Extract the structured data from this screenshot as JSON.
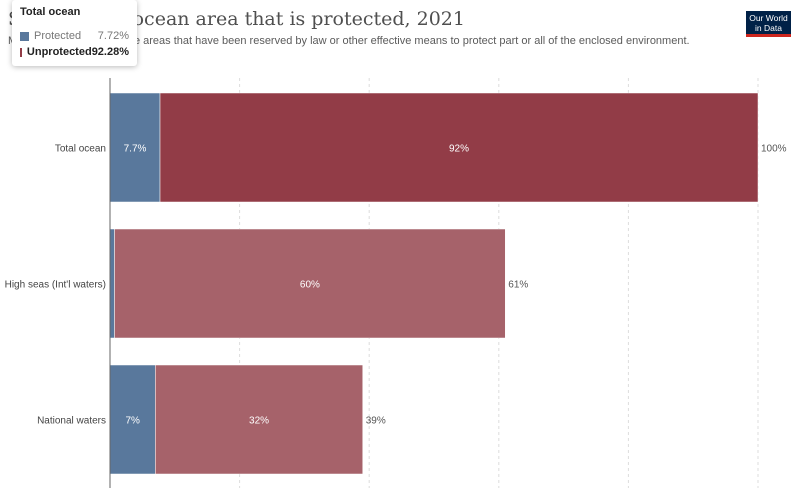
{
  "header": {
    "title": "Share of the ocean area that is protected, 2021",
    "subtitle": "Marine protected areas are areas that have been reserved by law or other effective means to protect part or all of the enclosed environment.",
    "logo_line1": "Our World",
    "logo_line2": "in Data"
  },
  "tooltip": {
    "title": "Total ocean",
    "rows": [
      {
        "label": "Protected",
        "value": "7.72%"
      },
      {
        "label": "Unprotected",
        "value": "92.28%"
      }
    ]
  },
  "colors": {
    "protected": "#59789c",
    "unprotected_highlight": "#923c47",
    "unprotected": "#a6626a",
    "grid": "#dddddd",
    "axis": "#666666"
  },
  "chart_data": {
    "type": "bar",
    "orientation": "horizontal",
    "stacked": true,
    "categories": [
      "Total ocean",
      "High seas (Int'l waters)",
      "National waters"
    ],
    "xlim": [
      0,
      100
    ],
    "grid": true,
    "series": [
      {
        "name": "Protected",
        "values": [
          7.72,
          0.7,
          7
        ],
        "labels": [
          "7.7%",
          "",
          "7%"
        ]
      },
      {
        "name": "Unprotected",
        "values": [
          92.28,
          60.3,
          32
        ],
        "labels": [
          "92%",
          "60%",
          "32%"
        ]
      }
    ],
    "totals": [
      "100%",
      "61%",
      "39%"
    ]
  }
}
